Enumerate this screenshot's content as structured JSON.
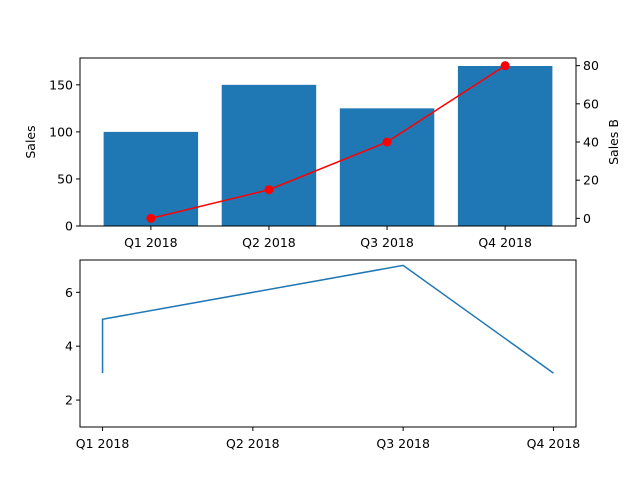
{
  "chart_data": [
    {
      "type": "bar",
      "categories": [
        "Q1 2018",
        "Q2 2018",
        "Q3 2018",
        "Q4 2018"
      ],
      "series": [
        {
          "type": "bar",
          "axis": "left",
          "color": "#1f77b4",
          "values": [
            100,
            150,
            125,
            170
          ]
        },
        {
          "type": "line",
          "axis": "right",
          "color": "#ff0000",
          "marker": "circle",
          "values": [
            0,
            15,
            40,
            80
          ]
        }
      ],
      "ylabel": "Sales",
      "y2label": "Sales B",
      "ylim": [
        0,
        178.5
      ],
      "y2lim": [
        -4,
        84
      ],
      "yticks": [
        0,
        50,
        100,
        150
      ],
      "y2ticks": [
        0,
        20,
        40,
        60,
        80
      ],
      "grid": false
    },
    {
      "type": "line",
      "categories": [
        "Q1 2018",
        "Q2 2018",
        "Q3 2018",
        "Q4 2018"
      ],
      "x": [
        0,
        0,
        2,
        3
      ],
      "series": [
        {
          "color": "#1f77b4",
          "values": [
            3,
            5,
            7,
            3
          ]
        }
      ],
      "xlim": [
        -0.15,
        3.15
      ],
      "ylim": [
        1.0,
        7.2
      ],
      "yticks": [
        2,
        4,
        6
      ],
      "grid": false
    }
  ]
}
